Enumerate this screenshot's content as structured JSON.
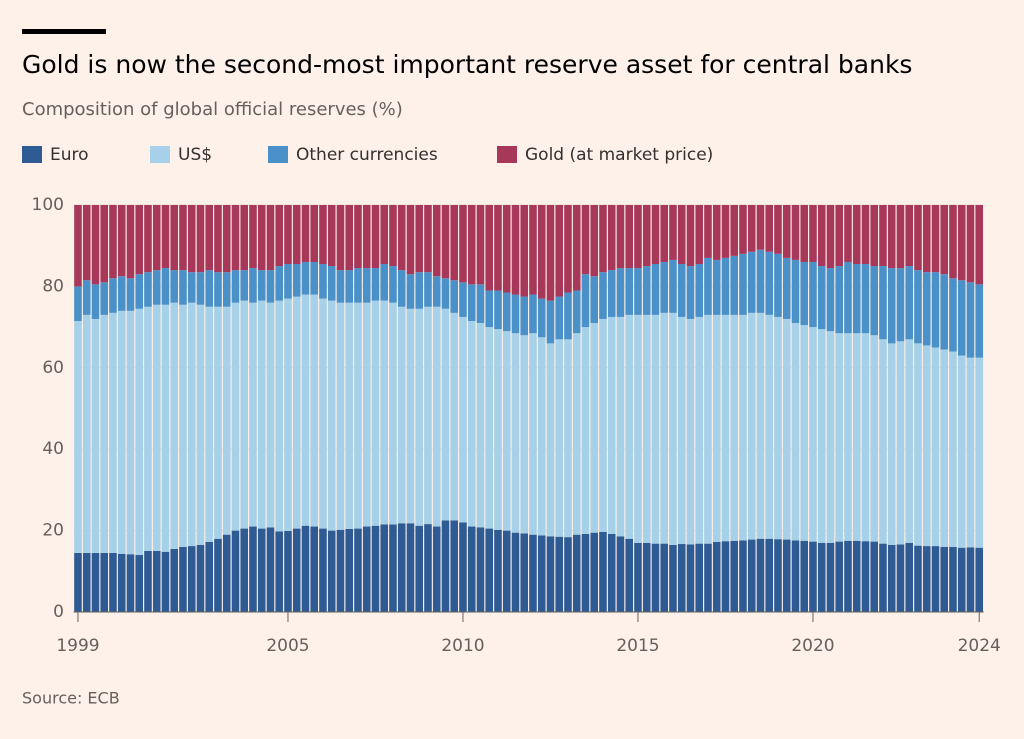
{
  "chart_data": {
    "type": "stacked_bar",
    "title": "Gold is now the second-most important reserve asset for central banks",
    "subtitle": "Composition of global official reserves (%)",
    "source": "Source: ECB",
    "categories": [
      "1999",
      null,
      null,
      null,
      null,
      null,
      null,
      null,
      null,
      null,
      null,
      null,
      null,
      null,
      null,
      null,
      null,
      null,
      null,
      null,
      null,
      null,
      null,
      null,
      "2005",
      null,
      null,
      null,
      null,
      null,
      null,
      null,
      null,
      null,
      null,
      null,
      null,
      null,
      null,
      null,
      null,
      null,
      null,
      null,
      "2010",
      null,
      null,
      null,
      null,
      null,
      null,
      null,
      null,
      null,
      null,
      null,
      null,
      null,
      null,
      null,
      null,
      null,
      null,
      null,
      "2015",
      null,
      null,
      null,
      null,
      null,
      null,
      null,
      null,
      null,
      null,
      null,
      null,
      null,
      null,
      null,
      null,
      null,
      null,
      null,
      "2020",
      null,
      null,
      null,
      null,
      null,
      null,
      null,
      null,
      null,
      null,
      null,
      null,
      null,
      null,
      null,
      null,
      null,
      null,
      "2024"
    ],
    "series": [
      {
        "name": "Euro",
        "color": "#2f5b94",
        "values": [
          14.5,
          14.5,
          14.5,
          14.5,
          14.5,
          14.3,
          14.2,
          14.0,
          15.0,
          15.0,
          14.8,
          15.5,
          16.0,
          16.2,
          16.5,
          17.2,
          18.0,
          19.0,
          20.0,
          20.5,
          21.0,
          20.5,
          20.8,
          19.8,
          19.9,
          20.5,
          21.2,
          21.0,
          20.5,
          20.0,
          20.2,
          20.4,
          20.5,
          21.0,
          21.2,
          21.5,
          21.5,
          21.8,
          21.8,
          21.2,
          21.6,
          21.0,
          22.5,
          22.5,
          22.0,
          21.0,
          20.8,
          20.5,
          20.2,
          20.0,
          19.5,
          19.3,
          19.0,
          18.8,
          18.6,
          18.5,
          18.4,
          19.0,
          19.2,
          19.5,
          19.7,
          19.2,
          18.6,
          18.0,
          17.0,
          17.0,
          16.8,
          16.8,
          16.5,
          16.7,
          16.6,
          16.8,
          16.8,
          17.2,
          17.4,
          17.5,
          17.6,
          17.8,
          18.0,
          18.0,
          17.9,
          17.8,
          17.6,
          17.5,
          17.3,
          17.0,
          17.0,
          17.3,
          17.5,
          17.5,
          17.4,
          17.3,
          16.8,
          16.5,
          16.6,
          17.0,
          16.3,
          16.2,
          16.2,
          16.0,
          16.0,
          15.8,
          15.9,
          15.8
        ]
      },
      {
        "name": "US$",
        "color": "#a7d1e8",
        "values": [
          57.0,
          58.5,
          57.5,
          58.5,
          59.0,
          59.7,
          59.8,
          60.5,
          60.0,
          60.5,
          60.7,
          60.5,
          59.5,
          59.8,
          59.0,
          57.8,
          57.0,
          56.0,
          56.0,
          56.0,
          55.0,
          56.0,
          55.2,
          56.7,
          57.1,
          57.0,
          56.8,
          57.0,
          56.5,
          56.5,
          55.8,
          55.6,
          55.5,
          55.0,
          55.3,
          55.0,
          54.5,
          53.2,
          52.7,
          53.3,
          53.4,
          54.0,
          52.0,
          51.0,
          50.5,
          50.5,
          50.2,
          49.5,
          49.3,
          49.0,
          49.0,
          48.7,
          49.5,
          48.7,
          47.4,
          48.5,
          48.6,
          49.5,
          50.8,
          51.5,
          52.3,
          53.3,
          53.9,
          55.0,
          56.0,
          56.0,
          56.2,
          56.7,
          57.0,
          55.8,
          55.4,
          55.7,
          56.2,
          55.8,
          55.6,
          55.5,
          55.4,
          55.7,
          55.5,
          55.0,
          54.6,
          54.2,
          53.4,
          53.0,
          52.7,
          52.5,
          52.0,
          51.2,
          51.0,
          51.0,
          51.1,
          50.7,
          50.2,
          49.5,
          49.9,
          50.0,
          49.7,
          49.3,
          48.8,
          48.5,
          48.0,
          47.2,
          46.6,
          46.7
        ]
      },
      {
        "name": "Other currencies",
        "color": "#4a90c9",
        "values": [
          8.5,
          8.5,
          8.5,
          8.0,
          8.5,
          8.5,
          8.0,
          8.5,
          8.5,
          8.5,
          9.0,
          8.0,
          8.5,
          7.5,
          8.0,
          9.0,
          8.5,
          8.5,
          8.0,
          7.5,
          8.5,
          7.5,
          8.0,
          8.5,
          8.5,
          8.0,
          8.0,
          8.0,
          8.5,
          8.5,
          8.0,
          8.0,
          8.5,
          8.5,
          8.0,
          9.0,
          9.0,
          9.0,
          8.5,
          9.0,
          8.5,
          7.5,
          7.5,
          8.0,
          8.5,
          9.0,
          9.5,
          9.0,
          9.5,
          9.5,
          9.5,
          9.5,
          9.5,
          9.5,
          10.5,
          10.5,
          11.5,
          10.5,
          13.0,
          11.5,
          11.5,
          11.5,
          12.0,
          11.5,
          11.5,
          12.0,
          12.5,
          12.5,
          13.0,
          13.0,
          13.0,
          13.0,
          14.0,
          13.5,
          14.0,
          14.5,
          15.0,
          15.0,
          15.5,
          15.5,
          15.5,
          15.0,
          15.5,
          15.5,
          16.0,
          15.5,
          15.5,
          16.5,
          17.5,
          17.0,
          17.0,
          17.0,
          18.0,
          18.5,
          18.0,
          18.0,
          18.0,
          18.0,
          18.5,
          18.5,
          18.0,
          18.5,
          18.5,
          18.0
        ]
      },
      {
        "name": "Gold (at market price)",
        "color": "#a8385a",
        "values": [
          20,
          18.5,
          19.5,
          19,
          18,
          17.5,
          18,
          17,
          16.5,
          16,
          15.5,
          16,
          16,
          16.5,
          16.5,
          16,
          16.5,
          16.5,
          16,
          16,
          15.5,
          16,
          16,
          15,
          14.5,
          14.5,
          14,
          14,
          14.5,
          15,
          16,
          16,
          15.5,
          15.5,
          15.5,
          14.5,
          15,
          16,
          17,
          16.5,
          16.5,
          17.5,
          18,
          18.5,
          19,
          19.5,
          19.5,
          21,
          21,
          21.5,
          22,
          22.5,
          22,
          23,
          23.5,
          22.5,
          21.5,
          21,
          17,
          17.5,
          16.5,
          16,
          15.5,
          15.5,
          15.5,
          15,
          14.5,
          14,
          13.5,
          14.5,
          15,
          14.5,
          13,
          13.5,
          13,
          12.5,
          12,
          11.5,
          11,
          11.5,
          12,
          13,
          13.5,
          14,
          14,
          15,
          15.5,
          15,
          14,
          14.5,
          14.5,
          15,
          15,
          15.5,
          15.5,
          15,
          16,
          16.5,
          16.5,
          17,
          18,
          18.5,
          19,
          19.5
        ]
      }
    ],
    "ylim": [
      0,
      100
    ],
    "yticks": [
      0,
      20,
      40,
      60,
      80,
      100
    ],
    "grid": true
  }
}
